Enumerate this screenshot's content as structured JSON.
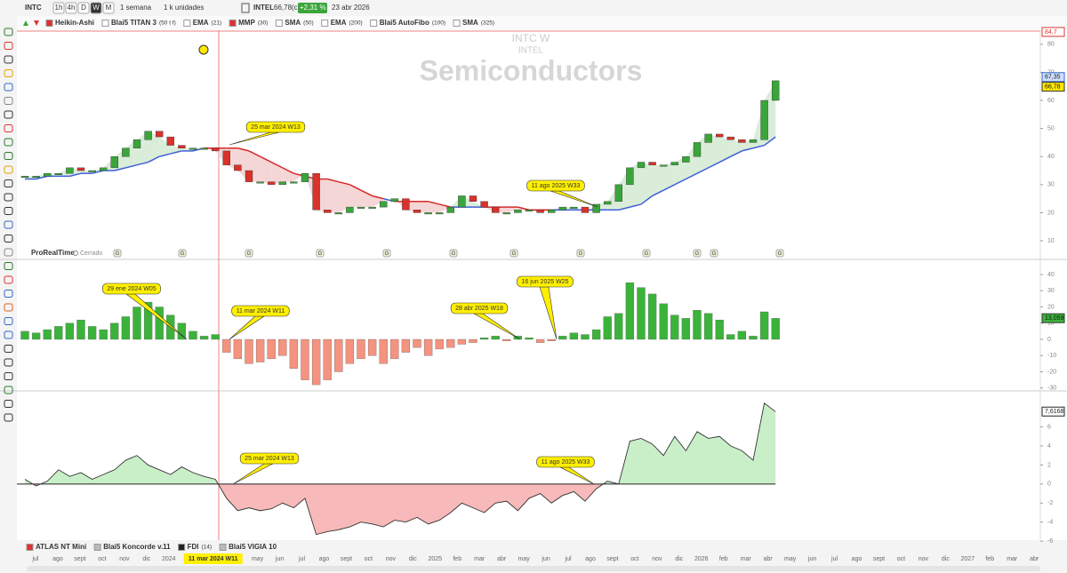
{
  "toolbar": {
    "symbol": "INTC",
    "timeframes": [
      "1h",
      "4h",
      "D",
      "W",
      "M"
    ],
    "active_timeframe": "W",
    "period": "1 semana",
    "units": "1 k unidades",
    "name": "INTEL",
    "price": "66,78(c)",
    "change": "+2,31 %",
    "date": "23 abr 2026"
  },
  "indicators": [
    {
      "name": "Heikin-Ashi",
      "color": "#e03030"
    },
    {
      "name": "Blai5 TITAN 3",
      "params": "(50 t f)"
    },
    {
      "name": "EMA",
      "params": "(21)"
    },
    {
      "name": "MMP",
      "params": "(30)",
      "color": "#e03030"
    },
    {
      "name": "SMA",
      "params": "(50)"
    },
    {
      "name": "EMA",
      "params": "(200)"
    },
    {
      "name": "Blai5 AutoFibo",
      "params": "(100)"
    },
    {
      "name": "SMA",
      "params": "(325)"
    }
  ],
  "chart_data": [
    {
      "type": "candlestick",
      "watermark": [
        "INTC  W",
        "INTEL"
      ],
      "title": "Semiconductors",
      "closes": [
        33,
        33,
        34,
        34,
        36,
        35,
        35,
        36,
        40,
        43,
        46,
        49,
        47,
        44,
        43,
        43,
        43,
        42,
        37,
        35,
        31,
        31,
        30,
        31,
        31,
        34,
        21,
        20,
        20,
        22,
        22,
        22,
        24,
        25,
        21,
        20,
        20,
        20,
        22,
        26,
        24,
        22,
        20,
        20,
        21,
        21,
        20,
        21,
        22,
        22,
        20,
        23,
        24,
        30,
        36,
        38,
        37,
        37,
        38,
        40,
        45,
        48,
        47,
        46,
        45,
        46,
        60,
        67
      ],
      "average": [
        32,
        32,
        33,
        33,
        33,
        34,
        34,
        35,
        35,
        36,
        37,
        38,
        40,
        41,
        42,
        42,
        43,
        43,
        43,
        43,
        42,
        40,
        38,
        36,
        34,
        33,
        32,
        32,
        31,
        30,
        28,
        26,
        25,
        24,
        24,
        24,
        24,
        23,
        22,
        22,
        22,
        22,
        22,
        22,
        22,
        21,
        21,
        21,
        21,
        21,
        21,
        21,
        21,
        21,
        22,
        23,
        26,
        28,
        30,
        32,
        34,
        36,
        38,
        40,
        42,
        43,
        44,
        47
      ],
      "ylim": [
        4,
        85
      ],
      "yticks": [
        10,
        20,
        30,
        40,
        50,
        60,
        70,
        80
      ],
      "level": {
        "value": 84.7,
        "label": "84,7"
      },
      "price_labels": [
        {
          "value": 67.35,
          "label": "67,35"
        },
        {
          "value": 66.78,
          "label": "66,78"
        }
      ],
      "annotations": [
        "25 mar 2024 W13",
        "11 ago 2025 W33"
      ],
      "events": [
        "G",
        "G",
        "G",
        "G",
        "G",
        "G",
        "G",
        "G",
        "G",
        "G",
        "G",
        "G"
      ]
    },
    {
      "type": "bar",
      "header": "ProRealTime",
      "status": "Cerrado",
      "values": [
        5,
        4,
        6,
        8,
        10,
        12,
        8,
        6,
        10,
        14,
        20,
        23,
        20,
        15,
        10,
        5,
        2,
        3,
        -8,
        -12,
        -15,
        -14,
        -12,
        -10,
        -18,
        -25,
        -28,
        -25,
        -20,
        -15,
        -12,
        -10,
        -15,
        -12,
        -8,
        -5,
        -10,
        -6,
        -5,
        -3,
        -2,
        1,
        2,
        -1,
        2,
        1,
        -2,
        -1,
        2,
        4,
        3,
        6,
        14,
        16,
        35,
        32,
        28,
        22,
        15,
        13,
        18,
        16,
        12,
        3,
        5,
        2,
        17,
        13
      ],
      "ylim": [
        -31.8,
        48.8
      ],
      "yticks": [
        -30,
        -20,
        -10,
        0,
        10,
        20,
        30,
        40
      ],
      "last": {
        "value": 13.059,
        "label": "13,059"
      },
      "annotations": [
        "29 ene 2024 W05",
        "11 mar 2024 W11",
        "28 abr 2025 W18",
        "16 jun 2025 W25"
      ]
    },
    {
      "type": "area",
      "values": [
        0.5,
        -0.2,
        0.3,
        1.5,
        0.8,
        1.2,
        0.5,
        1.0,
        1.5,
        2.5,
        3.0,
        2.0,
        1.5,
        1.0,
        1.8,
        1.2,
        0.8,
        0.5,
        -1.5,
        -2.8,
        -2.5,
        -2.8,
        -2.6,
        -2.0,
        -2.5,
        -1.5,
        -5.3,
        -5.0,
        -4.8,
        -4.5,
        -4.0,
        -4.2,
        -4.5,
        -3.8,
        -4.0,
        -3.5,
        -4.2,
        -3.8,
        -3.0,
        -2.0,
        -2.5,
        -3.0,
        -2.0,
        -1.8,
        -2.8,
        -1.5,
        -1.0,
        -2.0,
        -1.2,
        -0.8,
        -1.8,
        -0.5,
        0.3,
        0,
        4.5,
        4.8,
        4.2,
        3.0,
        5.0,
        3.5,
        5.5,
        4.8,
        5.0,
        4.0,
        3.5,
        2.5,
        8.5,
        7.6
      ],
      "ylim": [
        -5.8,
        9.6
      ],
      "yticks": [
        -6,
        -4,
        -2,
        0,
        2,
        4,
        6
      ],
      "last": {
        "value": 7.6168,
        "label": "7,6168"
      },
      "annotations": [
        "25 mar 2024 W13",
        "11 ago 2025 W33"
      ]
    }
  ],
  "time_axis": {
    "labels": [
      "jul",
      "ago",
      "sept",
      "oct",
      "nov",
      "dic",
      "2024",
      null,
      null,
      null,
      "may",
      "jun",
      "jul",
      "ago",
      "sept",
      "oct",
      "nov",
      "dic",
      "2025",
      "feb",
      "mar",
      "abr",
      "may",
      "jun",
      "jul",
      "ago",
      "sept",
      "oct",
      "nov",
      "dic",
      "2026",
      "feb",
      "mar",
      "abr",
      "may",
      "jun",
      "jul",
      "ago",
      "sept",
      "oct",
      "nov",
      "dic",
      "2027",
      "feb",
      "mar",
      "abr"
    ],
    "highlight": "11 mar 2024 W11"
  },
  "panels": [
    {
      "name": "ATLAS NT Mini",
      "color": "#e03030"
    },
    {
      "name": "Blai5 Koncorde v.11",
      "color": "#bbbbbb"
    },
    {
      "name": "FDI",
      "params": "(14)",
      "color": "#222222"
    },
    {
      "name": "Blai5 VIGIA 10",
      "color": "#bbbbbb"
    }
  ]
}
